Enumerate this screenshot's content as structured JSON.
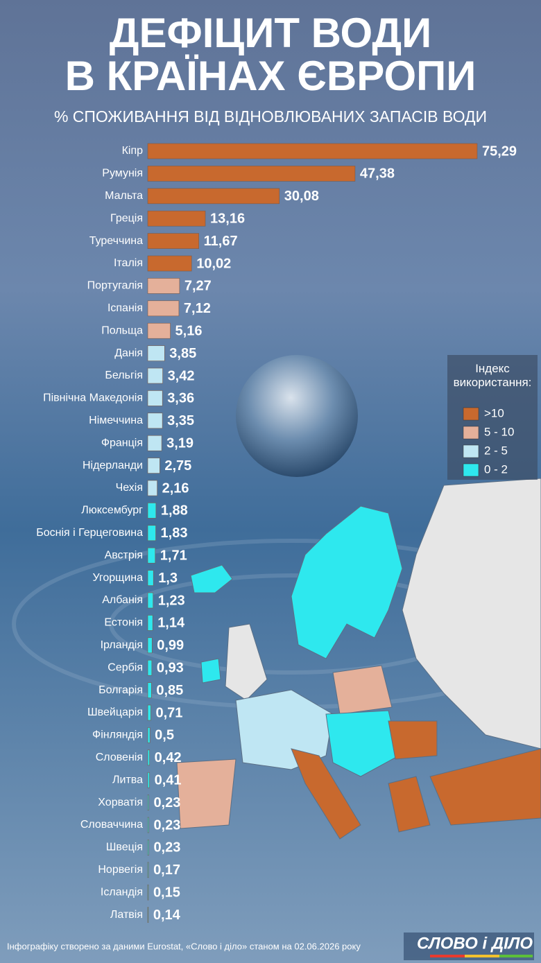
{
  "chart_data": {
    "type": "bar",
    "title": [
      "ДЕФІЦИТ ВОДИ",
      "В КРАЇНАХ ЄВРОПИ"
    ],
    "subtitle": "% СПОЖИВАННЯ ВІД ВІДНОВЛЮВАНИХ ЗАПАСІВ ВОДИ",
    "categories": [
      "Кіпр",
      "Румунія",
      "Мальта",
      "Греція",
      "Туреччина",
      "Італія",
      "Португалія",
      "Іспанія",
      "Польща",
      "Данія",
      "Бельгія",
      "Північна Македонія",
      "Німеччина",
      "Франція",
      "Нідерланди",
      "Чехія",
      "Люксембург",
      "Боснія і Герцеговина",
      "Австрія",
      "Угорщина",
      "Албанія",
      "Естонія",
      "Ірландія",
      "Сербія",
      "Болгарія",
      "Швейцарія",
      "Фінляндія",
      "Словенія",
      "Литва",
      "Хорватія",
      "Словаччина",
      "Швеція",
      "Норвегія",
      "Ісландія",
      "Латвія"
    ],
    "values": [
      75.29,
      47.38,
      30.08,
      13.16,
      11.67,
      10.02,
      7.27,
      7.12,
      5.16,
      3.85,
      3.42,
      3.36,
      3.35,
      3.19,
      2.75,
      2.16,
      1.88,
      1.83,
      1.71,
      1.3,
      1.23,
      1.14,
      0.99,
      0.93,
      0.85,
      0.71,
      0.5,
      0.42,
      0.41,
      0.23,
      0.23,
      0.23,
      0.17,
      0.15,
      0.14
    ],
    "value_labels": [
      "75,29",
      "47,38",
      "30,08",
      "13,16",
      "11,67",
      "10,02",
      "7,27",
      "7,12",
      "5,16",
      "3,85",
      "3,42",
      "3,36",
      "3,35",
      "3,19",
      "2,75",
      "2,16",
      "1,88",
      "1,83",
      "1,71",
      "1,3",
      "1,23",
      "1,14",
      "0,99",
      "0,93",
      "0,85",
      "0,71",
      "0,5",
      "0,42",
      "0,41",
      "0,23",
      "0,23",
      "0,23",
      "0,17",
      "0,15",
      "0,14"
    ],
    "colors": [
      "#c8692e",
      "#c8692e",
      "#c8692e",
      "#c8692e",
      "#c8692e",
      "#c8692e",
      "#e4b09a",
      "#e4b09a",
      "#e4b09a",
      "#bfe6f3",
      "#bfe6f3",
      "#bfe6f3",
      "#bfe6f3",
      "#bfe6f3",
      "#bfe6f3",
      "#bfe6f3",
      "#2ee8ee",
      "#2ee8ee",
      "#2ee8ee",
      "#2ee8ee",
      "#2ee8ee",
      "#2ee8ee",
      "#2ee8ee",
      "#2ee8ee",
      "#2ee8ee",
      "#2ee8ee",
      "#2ee8ee",
      "#2ee8ee",
      "#2ee8ee",
      "#2ee8ee",
      "#2ee8ee",
      "#2ee8ee",
      "#2ee8ee",
      "#2ee8ee",
      "#2ee8ee"
    ],
    "legend": {
      "title": "Індекс використання:",
      "items": [
        {
          "label": ">10",
          "color": "#c8692e"
        },
        {
          "label": "5 - 10",
          "color": "#e4b09a"
        },
        {
          "label": "2 - 5",
          "color": "#bfe6f3"
        },
        {
          "label": "0 - 2",
          "color": "#2ee8ee"
        }
      ]
    },
    "footer": "Інфографіку створено за даними Eurostat, «Слово і діло» станом на 02.06.2026 року",
    "logo": "СЛОВО і ДІЛО"
  }
}
